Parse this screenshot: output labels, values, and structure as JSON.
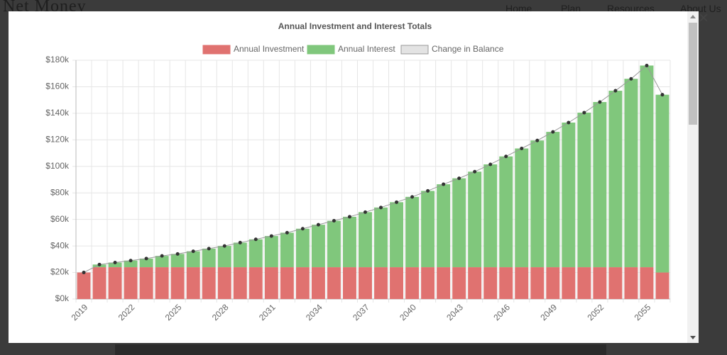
{
  "site": {
    "brand": "Net Money",
    "nav": [
      "Home",
      "Plan",
      "Resources",
      "About Us"
    ]
  },
  "modal": {
    "close": "×"
  },
  "chart_data": {
    "type": "bar",
    "title": "Annual Investment and Interest Totals",
    "categories": [
      "2019",
      null,
      null,
      "2022",
      null,
      null,
      "2025",
      null,
      null,
      "2028",
      null,
      null,
      "2031",
      null,
      null,
      "2034",
      null,
      null,
      "2037",
      null,
      null,
      "2040",
      null,
      null,
      "2043",
      null,
      null,
      "2046",
      null,
      null,
      "2049",
      null,
      null,
      "2052",
      null,
      null,
      "2055",
      null
    ],
    "stacked": true,
    "series": [
      {
        "name": "Annual Investment",
        "color": "#e07270",
        "type": "bar",
        "values": [
          20000,
          24000,
          24000,
          24000,
          24000,
          24000,
          24000,
          24000,
          24000,
          24000,
          24000,
          24000,
          24000,
          24000,
          24000,
          24000,
          24000,
          24000,
          24000,
          24000,
          24000,
          24000,
          24000,
          24000,
          24000,
          24000,
          24000,
          24000,
          24000,
          24000,
          24000,
          24000,
          24000,
          24000,
          24000,
          24000,
          24000,
          20000
        ]
      },
      {
        "name": "Annual Interest",
        "color": "#80c77c",
        "type": "bar",
        "values": [
          0,
          2000,
          3500,
          5000,
          6500,
          8500,
          10000,
          12000,
          14000,
          16000,
          18500,
          21000,
          23500,
          26000,
          29000,
          32000,
          35000,
          38000,
          41500,
          45000,
          49000,
          53000,
          57500,
          62500,
          67000,
          72000,
          77500,
          83500,
          89500,
          95500,
          102000,
          109000,
          116500,
          124500,
          133000,
          142000,
          152000,
          134000
        ]
      },
      {
        "name": "Change in Balance",
        "color": "#e3e3e3",
        "type": "line",
        "values": [
          20000,
          26000,
          27500,
          29000,
          30500,
          32500,
          34000,
          36000,
          38000,
          40000,
          42500,
          45000,
          47500,
          50000,
          53000,
          56000,
          59000,
          62000,
          65500,
          69000,
          73000,
          77000,
          81500,
          86500,
          91000,
          96000,
          101500,
          107500,
          113500,
          119500,
          126000,
          133000,
          140500,
          148500,
          157000,
          166000,
          176000,
          154000
        ]
      }
    ],
    "ylim": [
      0,
      180000
    ],
    "yticks": [
      {
        "value": 0,
        "label": "$0k"
      },
      {
        "value": 20000,
        "label": "$20k"
      },
      {
        "value": 40000,
        "label": "$40k"
      },
      {
        "value": 60000,
        "label": "$60k"
      },
      {
        "value": 80000,
        "label": "$80k"
      },
      {
        "value": 100000,
        "label": "$100k"
      },
      {
        "value": 120000,
        "label": "$120k"
      },
      {
        "value": 140000,
        "label": "$140k"
      },
      {
        "value": 160000,
        "label": "$160k"
      },
      {
        "value": 180000,
        "label": "$180k"
      }
    ],
    "grid": true,
    "legend": "top"
  }
}
